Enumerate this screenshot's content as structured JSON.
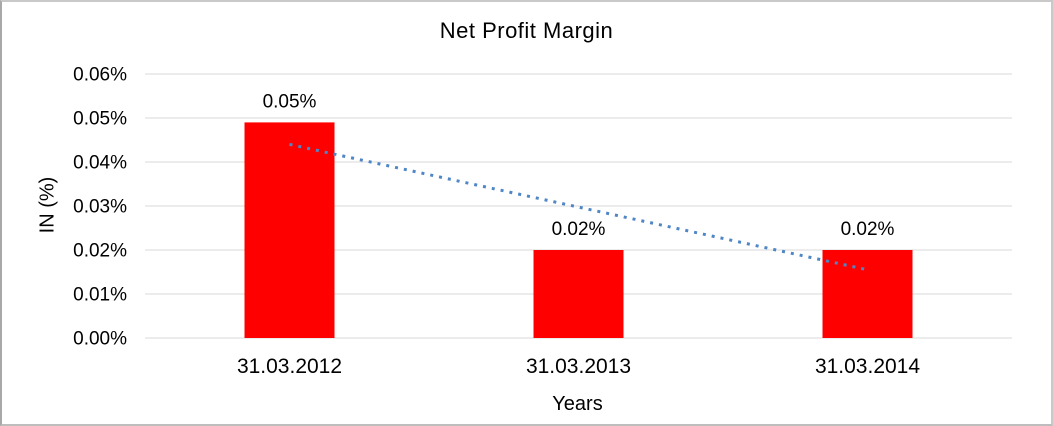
{
  "chart_data": {
    "type": "bar",
    "title": "Net Profit Margin",
    "xlabel": "Years",
    "ylabel": "IN (%)",
    "categories": [
      "31.03.2012",
      "31.03.2013",
      "31.03.2014"
    ],
    "values": [
      0.049,
      0.02,
      0.02
    ],
    "data_labels": [
      "0.05%",
      "0.02%",
      "0.02%"
    ],
    "ylim": [
      0,
      0.06
    ],
    "ytick_labels": [
      "0.00%",
      "0.01%",
      "0.02%",
      "0.03%",
      "0.04%",
      "0.05%",
      "0.06%"
    ],
    "grid": true,
    "legend_position": "none",
    "colors": {
      "bar": "#FF0000",
      "trendline": "#4F86C6",
      "gridline": "#D9D9D9",
      "text": "#000000"
    },
    "trendline": {
      "type": "linear",
      "style": "dotted",
      "y_start": 0.044,
      "y_end": 0.0155
    }
  }
}
